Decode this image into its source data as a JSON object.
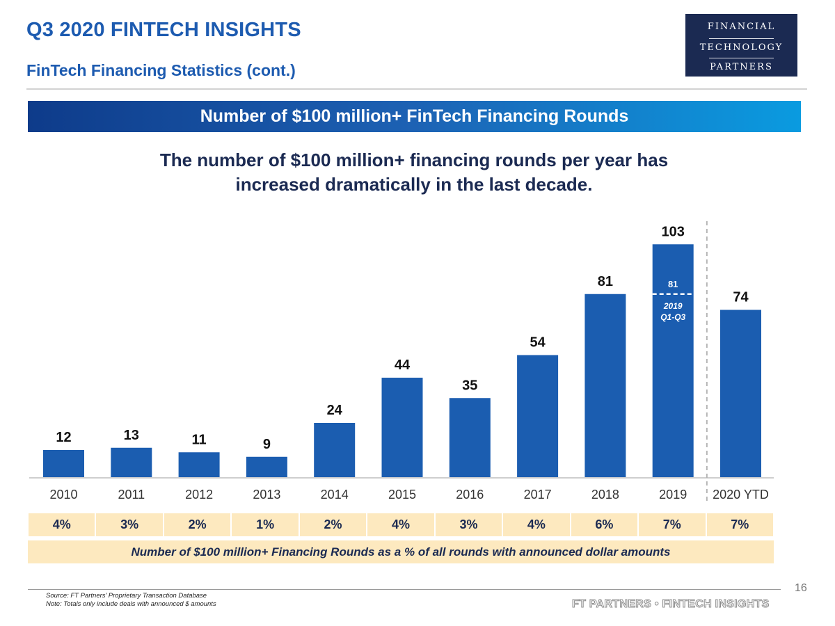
{
  "header": {
    "title": "Q3 2020 FINTECH INSIGHTS",
    "subtitle": "FinTech Financing Statistics (cont.)"
  },
  "logo": {
    "line1": "FINANCIAL",
    "line2": "TECHNOLOGY",
    "line3": "PARTNERS"
  },
  "banner": {
    "text": "Number of $100 million+ FinTech Financing Rounds"
  },
  "headline": {
    "line1": "The number of $100 million+ financing rounds per year has",
    "line2": "increased dramatically in the last decade."
  },
  "chart_data": {
    "type": "bar",
    "title": "Number of $100 million+ FinTech Financing Rounds",
    "categories": [
      "2010",
      "2011",
      "2012",
      "2013",
      "2014",
      "2015",
      "2016",
      "2017",
      "2018",
      "2019",
      "2020 YTD"
    ],
    "values": [
      12,
      13,
      11,
      9,
      24,
      44,
      35,
      54,
      81,
      103,
      74
    ],
    "ylim": [
      0,
      110
    ],
    "xlabel": "",
    "ylabel": "",
    "grid": false,
    "annotation_2019": {
      "value": 81,
      "label_line1": "2019",
      "label_line2": "Q1-Q3"
    },
    "percent_of_all_rounds": [
      "4%",
      "3%",
      "2%",
      "1%",
      "2%",
      "4%",
      "3%",
      "4%",
      "6%",
      "7%",
      "7%"
    ],
    "percent_caption": "Number of $100 million+ Financing Rounds as a % of all rounds with announced dollar amounts"
  },
  "colors": {
    "bar": "#1b5db0",
    "title": "#1d5bb0",
    "navy": "#1b2a52",
    "pct_bg": "#fde9bf"
  },
  "footer": {
    "page_number": "16",
    "source": "Source: FT Partners’ Proprietary Transaction Database",
    "note": "Note: Totals only include deals with announced $ amounts",
    "brand": "FT PARTNERS • FINTECH INSIGHTS"
  }
}
